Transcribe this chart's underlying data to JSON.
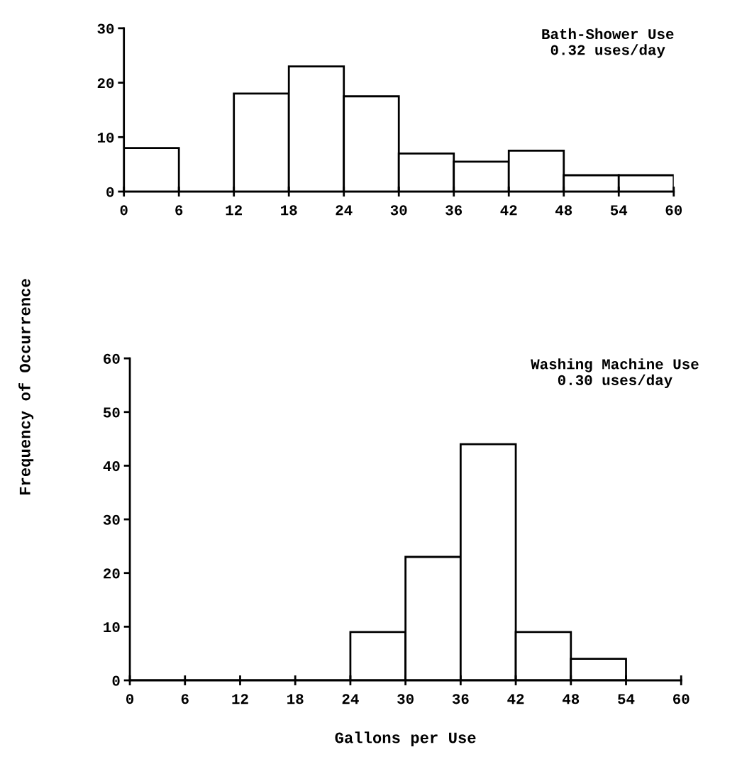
{
  "chart_data": [
    {
      "type": "histogram",
      "bins": [
        0,
        6,
        12,
        18,
        24,
        30,
        36,
        42,
        48,
        54,
        60
      ],
      "values": [
        8,
        0,
        18,
        23,
        17.5,
        7,
        5.5,
        7.5,
        3,
        3
      ],
      "color": "#ffffff",
      "xlim": [
        0,
        60
      ],
      "ylim": [
        0,
        30
      ],
      "xticks": [
        0,
        6,
        12,
        18,
        24,
        30,
        36,
        42,
        48,
        54,
        60
      ],
      "yticks": [
        0,
        10,
        20,
        30
      ],
      "grid": false,
      "ylabel": "Frequency of Occurrence",
      "annotations": [
        "Bath-Shower Use\n0.32 uses/day"
      ]
    },
    {
      "type": "histogram",
      "bins": [
        0,
        6,
        12,
        18,
        24,
        30,
        36,
        42,
        48,
        54
      ],
      "values": [
        0,
        0,
        0,
        0,
        9,
        23,
        44,
        9,
        4
      ],
      "color": "#ffffff",
      "xlim": [
        0,
        60
      ],
      "ylim": [
        0,
        60
      ],
      "xticks": [
        0,
        6,
        12,
        18,
        24,
        30,
        36,
        42,
        48,
        54,
        60
      ],
      "yticks": [
        0,
        10,
        20,
        30,
        40,
        50,
        60
      ],
      "grid": false,
      "xlabel": "Gallons per Use",
      "annotations": [
        "Washing Machine Use\n0.30 uses/day"
      ]
    }
  ]
}
